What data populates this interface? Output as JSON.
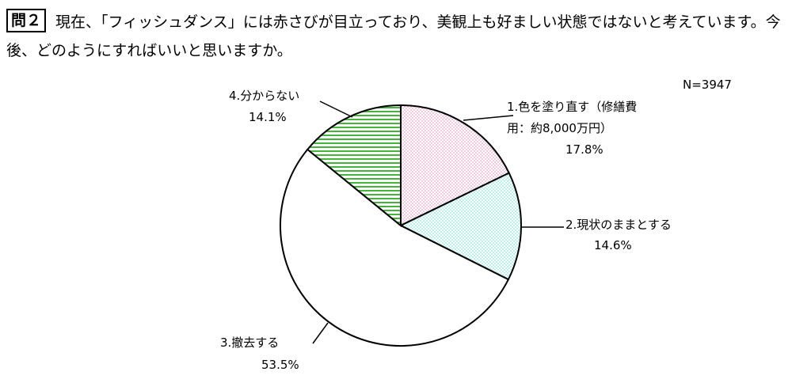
{
  "question": {
    "number": "問２",
    "text": "現在、「フィッシュダンス」には赤さびが目立っており、美観上も好ましい状態ではないと考えています。今後、どのようにすればいいと思いますか。"
  },
  "chart_data": {
    "type": "pie",
    "sample_size": "N=3947",
    "slices": [
      {
        "label_lines": [
          "1.色を塗り直す（修繕費",
          "用：約8,000万円）"
        ],
        "percent_label": "17.8%",
        "value": 17.8,
        "color": "#f6c6e0",
        "pattern": "dots"
      },
      {
        "label_lines": [
          "2.現状のままとする"
        ],
        "percent_label": "14.6%",
        "value": 14.6,
        "color": "#bdf4f4",
        "pattern": "dots"
      },
      {
        "label_lines": [
          "3.撤去する"
        ],
        "percent_label": "53.5%",
        "value": 53.5,
        "color": "#ffffff",
        "pattern": "none"
      },
      {
        "label_lines": [
          "4.分からない"
        ],
        "percent_label": "14.1%",
        "value": 14.1,
        "color": "#46b43c",
        "pattern": "stripes"
      }
    ],
    "start_angle_deg": 0,
    "direction": "clockwise",
    "legend": "none"
  }
}
